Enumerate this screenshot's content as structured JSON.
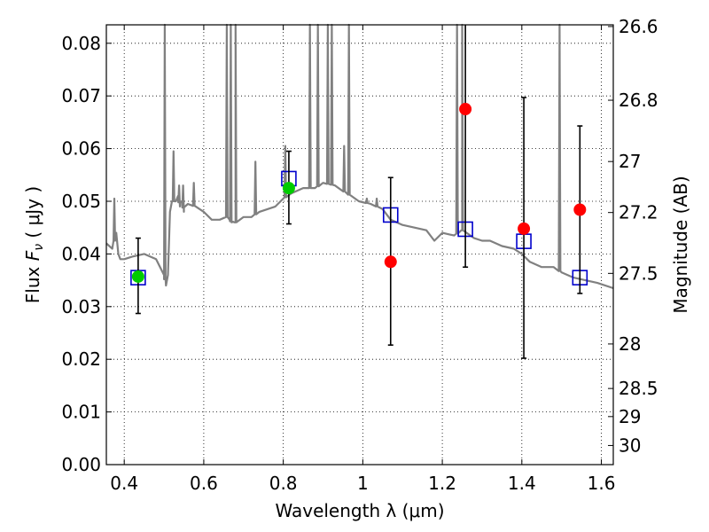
{
  "chart_data": {
    "type": "scatter",
    "xlabel": "Wavelength  λ (μm)",
    "ylabel_prefix": "Flux  ",
    "ylabel_math": "F",
    "ylabel_sub": "ν",
    "ylabel_suffix": "  ( μJy )",
    "y2label": "Magnitude (AB)",
    "xlim": [
      0.355,
      1.63
    ],
    "ylim": [
      0.0,
      0.0835
    ],
    "x_ticks": [
      0.4,
      0.6,
      0.8,
      1.0,
      1.2,
      1.4,
      1.6
    ],
    "x_tick_labels": [
      "0.4",
      "0.6",
      "0.8",
      "1",
      "1.2",
      "1.4",
      "1.6"
    ],
    "y_ticks": [
      0.0,
      0.01,
      0.02,
      0.03,
      0.04,
      0.05,
      0.06,
      0.07,
      0.08
    ],
    "y_tick_labels": [
      "0.00",
      "0.01",
      "0.02",
      "0.03",
      "0.04",
      "0.05",
      "0.06",
      "0.07",
      "0.08"
    ],
    "mag_ticks": [
      26.6,
      26.8,
      27,
      27.2,
      27.5,
      28,
      28.5,
      29,
      30
    ],
    "mag_tick_labels": [
      "26.6",
      "26.8",
      "27",
      "27.2",
      "27.5",
      "28",
      "28.5",
      "29",
      "30"
    ],
    "grid": true,
    "colors": {
      "model": "#808080",
      "observed_detection": "#00cc00",
      "observed_nondetection": "#ff0000",
      "model_photometry": "#0000cc",
      "errorbar": "#000000",
      "axes": "#000000",
      "grid": "#000000"
    },
    "model_spectrum": {
      "x": [
        0.355,
        0.37,
        0.38,
        0.385,
        0.39,
        0.4,
        0.42,
        0.45,
        0.48,
        0.5,
        0.505,
        0.51,
        0.515,
        0.52,
        0.53,
        0.535,
        0.54,
        0.545,
        0.55,
        0.56,
        0.58,
        0.6,
        0.62,
        0.64,
        0.656,
        0.66,
        0.665,
        0.67,
        0.68,
        0.7,
        0.72,
        0.74,
        0.76,
        0.78,
        0.8,
        0.82,
        0.85,
        0.88,
        0.9,
        0.93,
        0.96,
        0.99,
        1.02,
        1.05,
        1.07,
        1.1,
        1.13,
        1.16,
        1.18,
        1.2,
        1.23,
        1.25,
        1.28,
        1.3,
        1.32,
        1.35,
        1.38,
        1.4,
        1.42,
        1.45,
        1.48,
        1.5,
        1.53,
        1.56,
        1.59,
        1.63
      ],
      "y": [
        0.042,
        0.041,
        0.044,
        0.04,
        0.039,
        0.039,
        0.0395,
        0.04,
        0.039,
        0.036,
        0.034,
        0.036,
        0.048,
        0.05,
        0.05,
        0.051,
        0.049,
        0.05,
        0.048,
        0.0495,
        0.049,
        0.048,
        0.0465,
        0.0465,
        0.047,
        0.047,
        0.0465,
        0.046,
        0.046,
        0.047,
        0.047,
        0.048,
        0.0485,
        0.049,
        0.0505,
        0.0515,
        0.0525,
        0.0525,
        0.0535,
        0.053,
        0.0515,
        0.05,
        0.0495,
        0.0485,
        0.0465,
        0.0455,
        0.045,
        0.0445,
        0.0425,
        0.044,
        0.0435,
        0.0445,
        0.043,
        0.0425,
        0.0425,
        0.0415,
        0.041,
        0.04,
        0.0385,
        0.0375,
        0.0375,
        0.0365,
        0.0355,
        0.035,
        0.0345,
        0.0335
      ]
    },
    "model_spikes": [
      {
        "x": 0.375,
        "y": 0.0505
      },
      {
        "x": 0.502,
        "y": 0.0838
      },
      {
        "x": 0.524,
        "y": 0.0595
      },
      {
        "x": 0.538,
        "y": 0.053
      },
      {
        "x": 0.548,
        "y": 0.053
      },
      {
        "x": 0.575,
        "y": 0.0535
      },
      {
        "x": 0.658,
        "y": 0.0838
      },
      {
        "x": 0.668,
        "y": 0.0838
      },
      {
        "x": 0.68,
        "y": 0.0838
      },
      {
        "x": 0.73,
        "y": 0.0575
      },
      {
        "x": 0.805,
        "y": 0.0605
      },
      {
        "x": 0.867,
        "y": 0.0838
      },
      {
        "x": 0.887,
        "y": 0.0838
      },
      {
        "x": 0.912,
        "y": 0.0838
      },
      {
        "x": 0.922,
        "y": 0.0838
      },
      {
        "x": 0.953,
        "y": 0.0605
      },
      {
        "x": 0.965,
        "y": 0.0838
      },
      {
        "x": 1.01,
        "y": 0.0505
      },
      {
        "x": 1.035,
        "y": 0.0505
      },
      {
        "x": 1.237,
        "y": 0.0838
      },
      {
        "x": 1.25,
        "y": 0.0838
      },
      {
        "x": 1.495,
        "y": 0.0838
      }
    ],
    "series": [
      {
        "marker": "square-open",
        "color": "#0000cc",
        "points": [
          {
            "x": 0.435,
            "y": 0.0355
          },
          {
            "x": 0.814,
            "y": 0.0543
          },
          {
            "x": 1.07,
            "y": 0.0474
          },
          {
            "x": 1.258,
            "y": 0.0447
          },
          {
            "x": 1.405,
            "y": 0.0424
          },
          {
            "x": 1.546,
            "y": 0.0355
          }
        ]
      },
      {
        "marker": "circle",
        "color": "#00cc00",
        "points": [
          {
            "x": 0.435,
            "y": 0.0357,
            "ylo": 0.0287,
            "yhi": 0.043
          },
          {
            "x": 0.814,
            "y": 0.0525,
            "ylo": 0.0457,
            "yhi": 0.0595
          }
        ]
      },
      {
        "marker": "circle",
        "color": "#ff0000",
        "points": [
          {
            "x": 1.07,
            "y": 0.0385,
            "ylo": 0.0227,
            "yhi": 0.0545
          },
          {
            "x": 1.258,
            "y": 0.0675,
            "ylo": 0.0375,
            "yhi": 0.0838
          },
          {
            "x": 1.405,
            "y": 0.0448,
            "ylo": 0.0202,
            "yhi": 0.0697
          },
          {
            "x": 1.546,
            "y": 0.0484,
            "ylo": 0.0325,
            "yhi": 0.0643
          }
        ]
      }
    ]
  }
}
